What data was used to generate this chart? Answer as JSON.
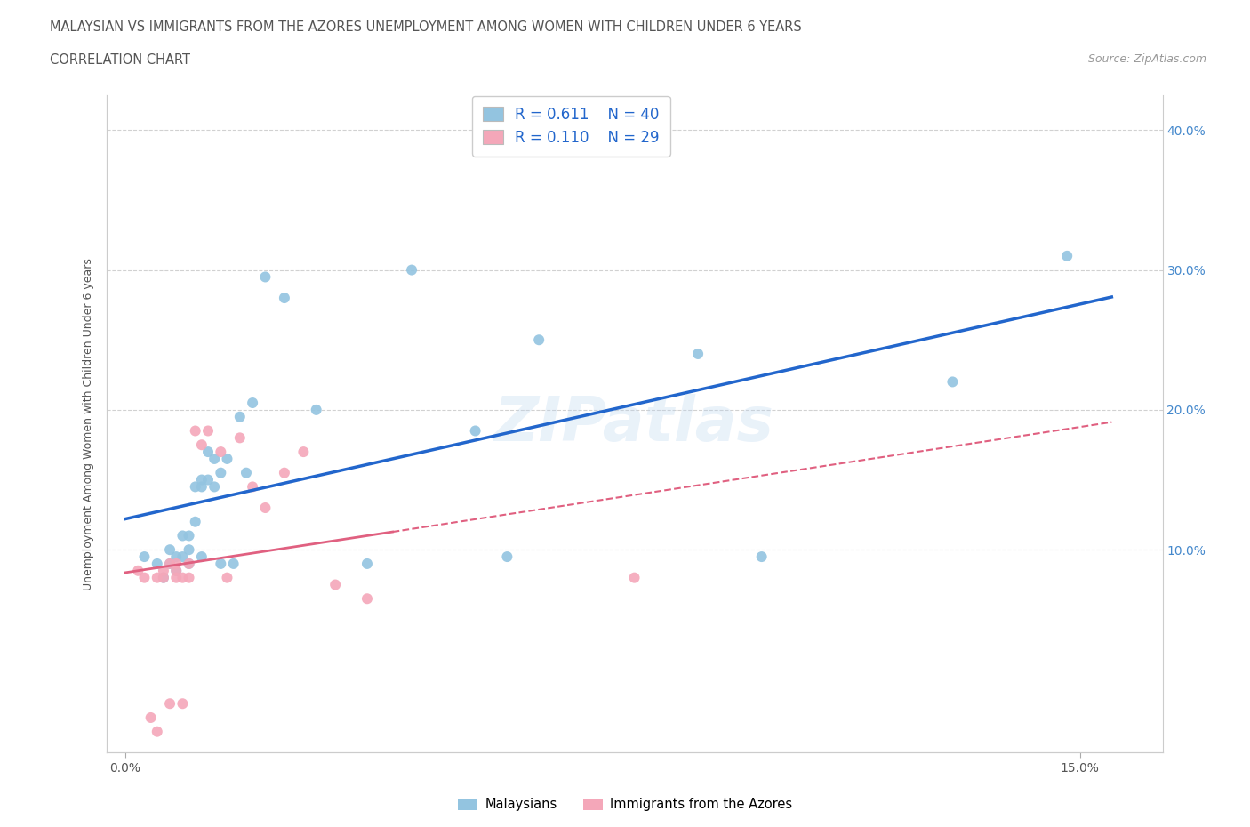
{
  "title": "MALAYSIAN VS IMMIGRANTS FROM THE AZORES UNEMPLOYMENT AMONG WOMEN WITH CHILDREN UNDER 6 YEARS",
  "subtitle": "CORRELATION CHART",
  "source": "Source: ZipAtlas.com",
  "ylabel": "Unemployment Among Women with Children Under 6 years",
  "watermark": "ZIPatlas",
  "legend1_R": "0.611",
  "legend1_N": "40",
  "legend2_R": "0.110",
  "legend2_N": "29",
  "legend1_label": "Malaysians",
  "legend2_label": "Immigrants from the Azores",
  "blue_color": "#93c4e0",
  "pink_color": "#f4a7b9",
  "line_blue": "#2266cc",
  "line_pink": "#e06080",
  "xlim": [
    -0.003,
    0.163
  ],
  "ylim": [
    -0.045,
    0.425
  ],
  "blue_x": [
    0.003,
    0.005,
    0.006,
    0.007,
    0.007,
    0.008,
    0.008,
    0.009,
    0.009,
    0.01,
    0.01,
    0.01,
    0.011,
    0.011,
    0.012,
    0.012,
    0.012,
    0.013,
    0.013,
    0.014,
    0.014,
    0.015,
    0.015,
    0.016,
    0.017,
    0.018,
    0.019,
    0.02,
    0.022,
    0.025,
    0.03,
    0.038,
    0.045,
    0.055,
    0.06,
    0.065,
    0.09,
    0.1,
    0.13,
    0.148
  ],
  "blue_y": [
    0.095,
    0.09,
    0.08,
    0.09,
    0.1,
    0.085,
    0.095,
    0.095,
    0.11,
    0.09,
    0.1,
    0.11,
    0.12,
    0.145,
    0.145,
    0.15,
    0.095,
    0.15,
    0.17,
    0.145,
    0.165,
    0.155,
    0.09,
    0.165,
    0.09,
    0.195,
    0.155,
    0.205,
    0.295,
    0.28,
    0.2,
    0.09,
    0.3,
    0.185,
    0.095,
    0.25,
    0.24,
    0.095,
    0.22,
    0.31
  ],
  "pink_x": [
    0.002,
    0.003,
    0.004,
    0.005,
    0.005,
    0.006,
    0.006,
    0.007,
    0.007,
    0.008,
    0.008,
    0.008,
    0.009,
    0.009,
    0.01,
    0.01,
    0.011,
    0.012,
    0.013,
    0.015,
    0.016,
    0.018,
    0.02,
    0.022,
    0.025,
    0.028,
    0.033,
    0.038,
    0.08
  ],
  "pink_y": [
    0.085,
    0.08,
    -0.02,
    0.08,
    -0.03,
    0.08,
    0.085,
    -0.01,
    0.09,
    0.08,
    0.085,
    0.09,
    0.08,
    -0.01,
    0.08,
    0.09,
    0.185,
    0.175,
    0.185,
    0.17,
    0.08,
    0.18,
    0.145,
    0.13,
    0.155,
    0.17,
    0.075,
    0.065,
    0.08
  ]
}
